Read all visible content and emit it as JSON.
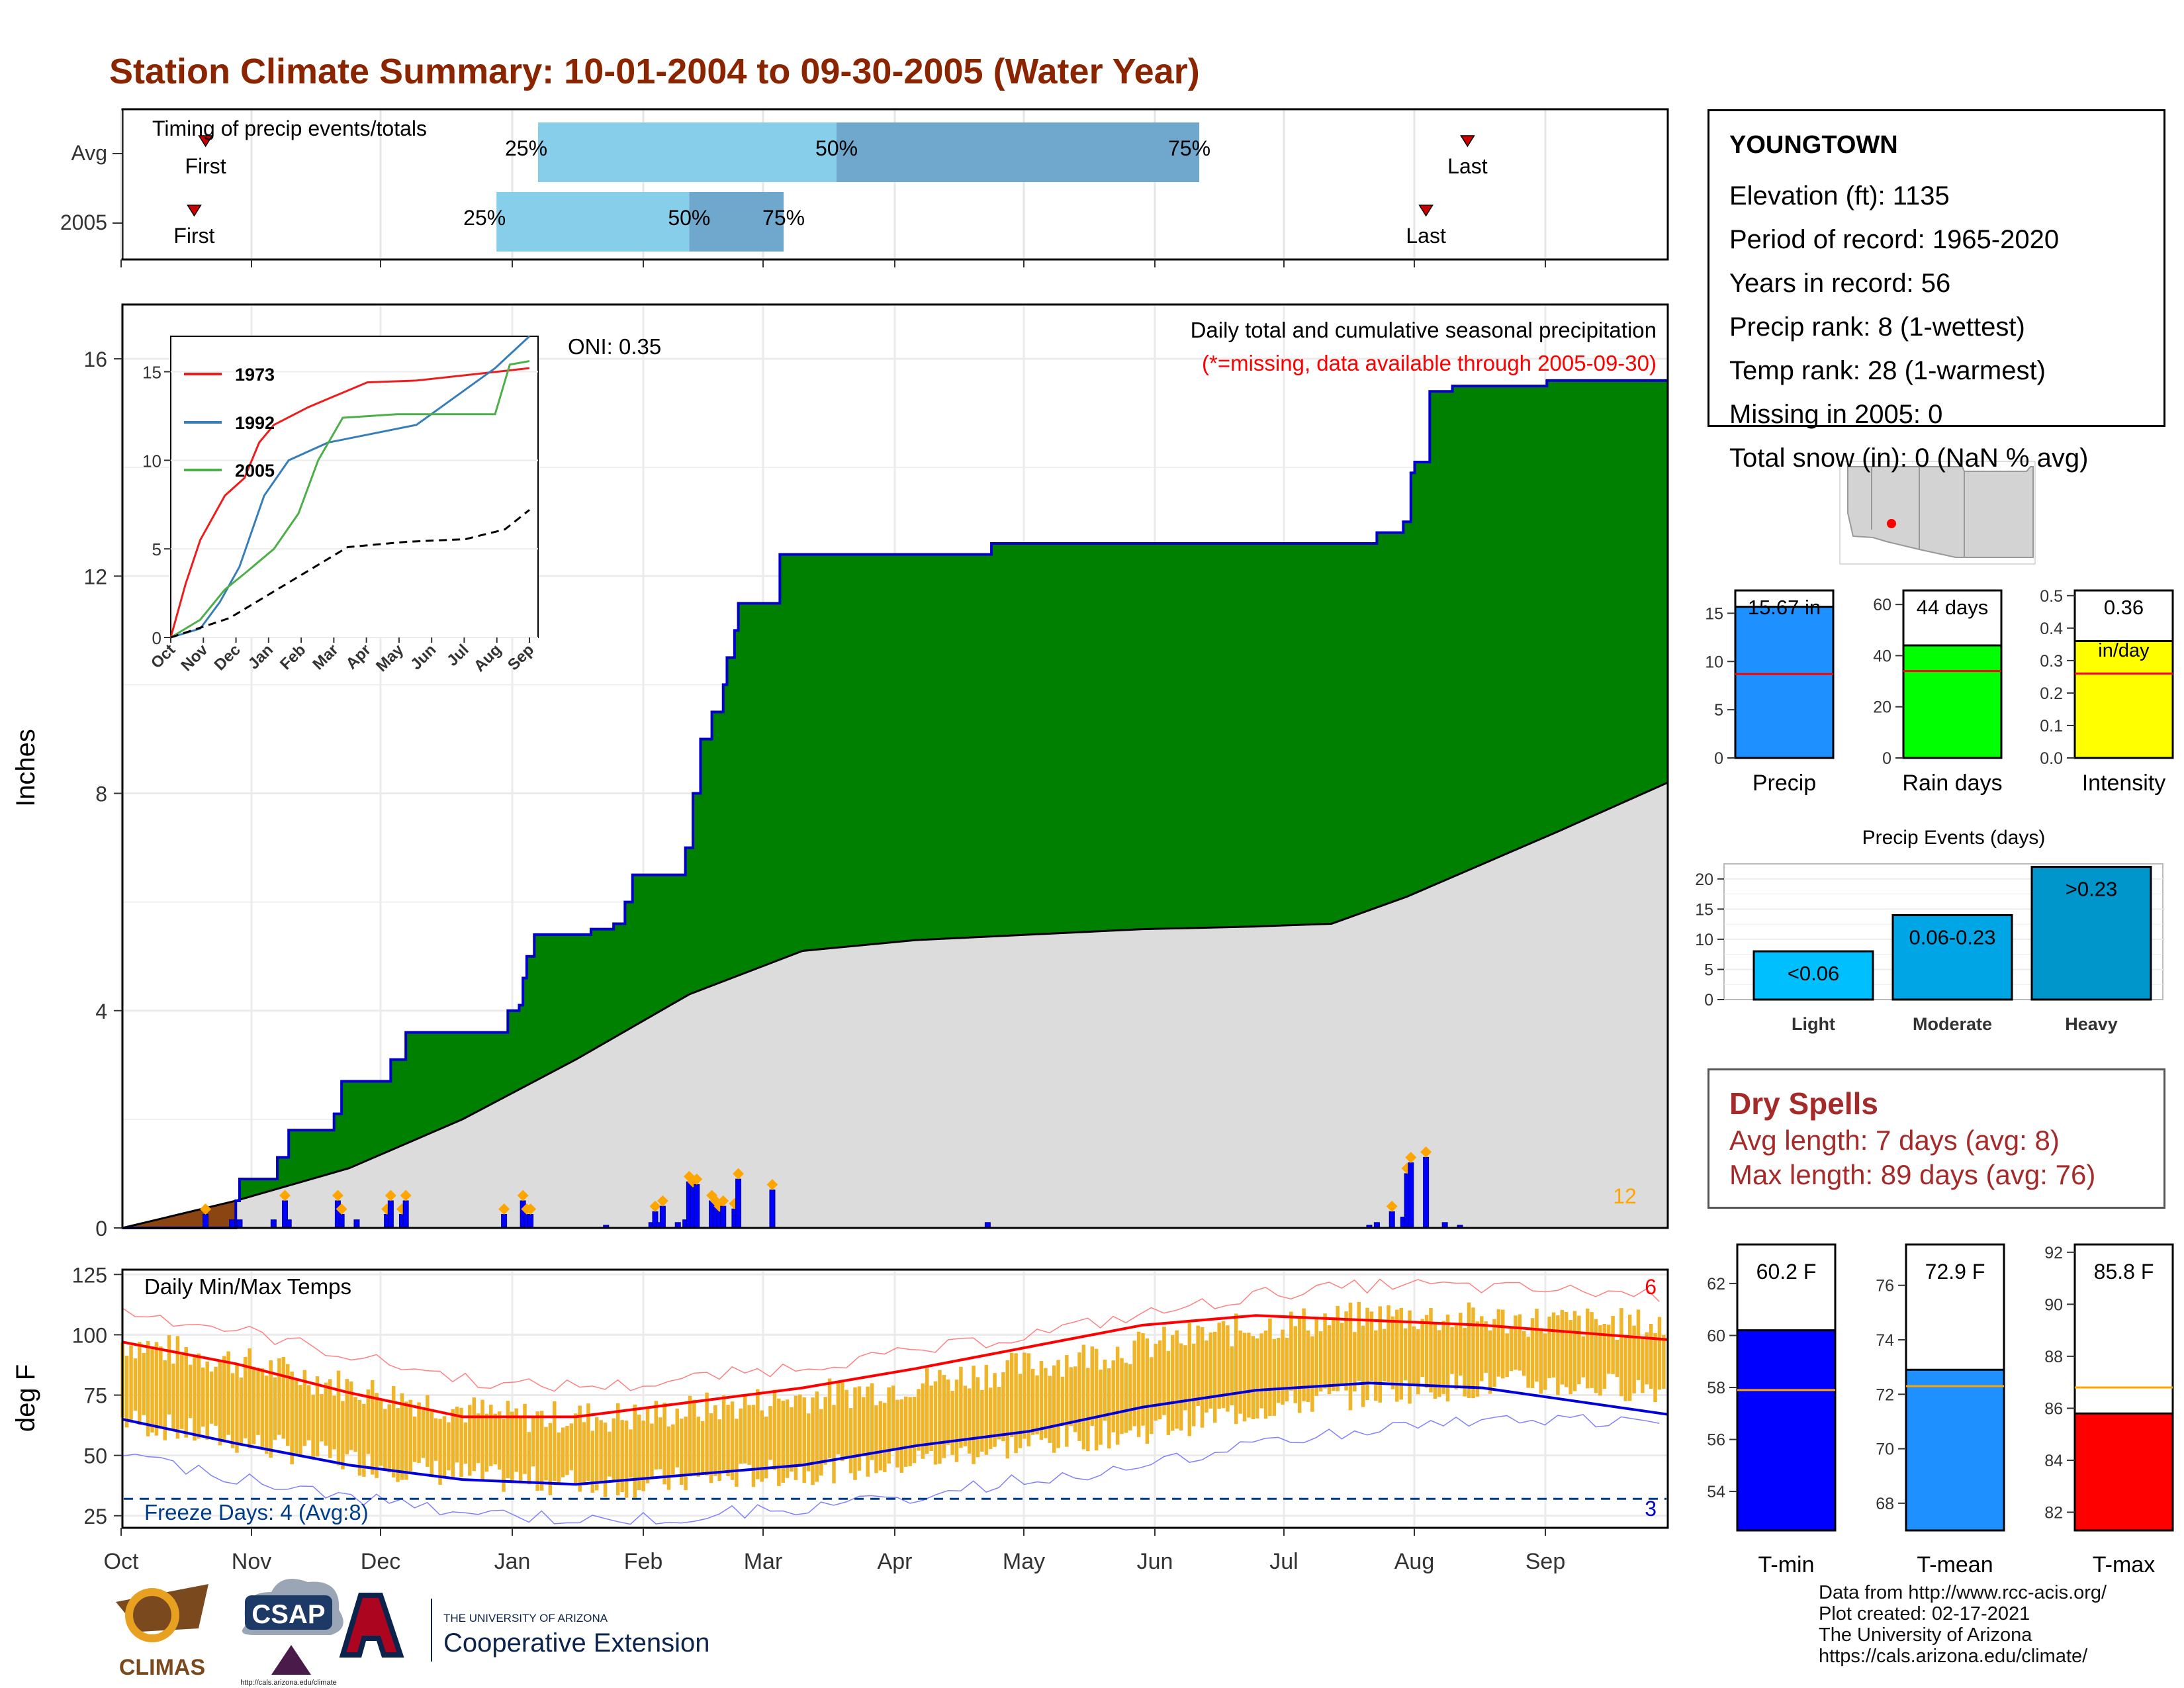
{
  "title": "Station Climate Summary: 10-01-2004 to 09-30-2005 (Water Year)",
  "colors": {
    "title": "#8b2500",
    "cum_green": "#008000",
    "cum_line": "#0000cd",
    "avg_fill": "#dcdcdc",
    "daily_bar": "#0000ff",
    "marker": "#ffa500",
    "temp_range": "#f0b428",
    "tmax_line": "#ff0000",
    "tmin_line": "#0000dd",
    "freeze_line": "#003c8c",
    "bar_light": "#87ceeb",
    "bar_dark": "#6fa8cc",
    "dry_text": "#a52a2a"
  },
  "timing": {
    "label": "Timing of precip events/totals",
    "rows": [
      "Avg",
      "2005"
    ],
    "first": "First",
    "last": "Last",
    "pct": [
      "25%",
      "50%",
      "75%"
    ]
  },
  "precip": {
    "ylabel": "Inches",
    "yticks": [
      "0",
      "4",
      "8",
      "12",
      "16"
    ],
    "title": "Daily total and cumulative seasonal precipitation",
    "missing_note": "(*=missing, data available through 2005-09-30)",
    "oni": "ONI: 0.35",
    "count_label": "12"
  },
  "inset": {
    "yticks": [
      "0",
      "5",
      "10",
      "15"
    ],
    "xticks": [
      "Oct",
      "Nov",
      "Dec",
      "Jan",
      "Feb",
      "Mar",
      "Apr",
      "May",
      "Jun",
      "Jul",
      "Aug",
      "Sep"
    ],
    "legend": [
      "1973",
      "1992",
      "2005"
    ]
  },
  "temps": {
    "ylabel": "deg F",
    "yticks": [
      "25",
      "50",
      "75",
      "100",
      "125"
    ],
    "title": "Daily Min/Max Temps",
    "freeze": "Freeze Days: 4 (Avg:8)",
    "count_hi": "6",
    "count_lo": "3"
  },
  "months": [
    "Oct",
    "Nov",
    "Dec",
    "Jan",
    "Feb",
    "Mar",
    "Apr",
    "May",
    "Jun",
    "Jul",
    "Aug",
    "Sep"
  ],
  "station": {
    "name": "YOUNGTOWN",
    "lines": [
      "Elevation (ft): 1135",
      "Period of record: 1965-2020",
      "Years in record: 56",
      "Precip rank: 8 (1-wettest)",
      "Temp rank: 28 (1-warmest)",
      "Missing in 2005: 0",
      "Total snow (in): 0 (NaN % avg)"
    ]
  },
  "mini_bars": {
    "precip": {
      "label": "Precip",
      "value_text": "15.67 in",
      "yticks": [
        "0",
        "5",
        "10",
        "15"
      ]
    },
    "raindays": {
      "label": "Rain days",
      "value_text": "44 days",
      "yticks": [
        "0",
        "20",
        "40",
        "60"
      ]
    },
    "intensity": {
      "label": "Intensity",
      "value_text": "0.36",
      "unit": "in/day",
      "yticks": [
        "0.0",
        "0.1",
        "0.2",
        "0.3",
        "0.4",
        "0.5"
      ]
    }
  },
  "events": {
    "title": "Precip Events (days)",
    "yticks": [
      "0",
      "5",
      "10",
      "15",
      "20"
    ],
    "categories": [
      "Light",
      "Moderate",
      "Heavy"
    ],
    "labels": [
      "<0.06",
      "0.06-0.23",
      ">0.23"
    ]
  },
  "dry": {
    "title": "Dry Spells",
    "lines": [
      "Avg length: 7 days (avg: 8)",
      "Max length: 89 days (avg: 76)"
    ]
  },
  "temp_bars": {
    "tmin": {
      "label": "T-min",
      "value_text": "60.2 F",
      "yticks": [
        "54",
        "56",
        "58",
        "60",
        "62"
      ]
    },
    "tmean": {
      "label": "T-mean",
      "value_text": "72.9 F",
      "yticks": [
        "68",
        "70",
        "72",
        "74",
        "76"
      ]
    },
    "tmax": {
      "label": "T-max",
      "value_text": "85.8 F",
      "yticks": [
        "82",
        "84",
        "86",
        "88",
        "90",
        "92"
      ]
    }
  },
  "footer": [
    "Data from http://www.rcc-acis.org/",
    "Plot created: 02-17-2021",
    "The University of Arizona",
    "https://cals.arizona.edu/climate/"
  ],
  "logos": {
    "climas": "CLIMAS",
    "csap": "CSAP",
    "csap_url": "http://cals.arizona.edu/climate",
    "ua_top": "THE UNIVERSITY OF ARIZONA",
    "ua_bottom": "Cooperative Extension"
  },
  "chart_data": [
    {
      "type": "bar",
      "name": "timing",
      "x_unit": "day of water year",
      "avg": {
        "first": 22,
        "q25": 110,
        "q50": 189,
        "q75": 285,
        "last": 356
      },
      "y2005": {
        "first": 19,
        "q25": 99,
        "q50": 150,
        "q75": 175,
        "last": 345
      }
    },
    {
      "type": "area",
      "name": "cumulative precipitation",
      "ylim": [
        0,
        17
      ],
      "cumulative_2005": [
        [
          0,
          0
        ],
        [
          30,
          0.5
        ],
        [
          31,
          0.9
        ],
        [
          40,
          0.9
        ],
        [
          41,
          1.3
        ],
        [
          44,
          1.8
        ],
        [
          55,
          1.8
        ],
        [
          56,
          2.1
        ],
        [
          58,
          2.7
        ],
        [
          70,
          2.7
        ],
        [
          71,
          3.1
        ],
        [
          75,
          3.6
        ],
        [
          100,
          3.6
        ],
        [
          102,
          4.0
        ],
        [
          105,
          4.1
        ],
        [
          106,
          4.6
        ],
        [
          107,
          5.0
        ],
        [
          109,
          5.4
        ],
        [
          124,
          5.5
        ],
        [
          130,
          5.6
        ],
        [
          133,
          6.0
        ],
        [
          135,
          6.5
        ],
        [
          145,
          6.5
        ],
        [
          149,
          7.0
        ],
        [
          151,
          8.0
        ],
        [
          153,
          9.0
        ],
        [
          156,
          9.5
        ],
        [
          159,
          10.0
        ],
        [
          160,
          10.5
        ],
        [
          162,
          11.0
        ],
        [
          163,
          11.5
        ],
        [
          173,
          11.5
        ],
        [
          174,
          12.4
        ],
        [
          229,
          12.4
        ],
        [
          230,
          12.6
        ],
        [
          330,
          12.6
        ],
        [
          332,
          12.8
        ],
        [
          337,
          12.8
        ],
        [
          339,
          13.0
        ],
        [
          341,
          13.9
        ],
        [
          342,
          14.1
        ],
        [
          346,
          15.4
        ],
        [
          350,
          15.4
        ],
        [
          352,
          15.5
        ],
        [
          375,
          15.5
        ],
        [
          377,
          15.6
        ],
        [
          409,
          15.6
        ]
      ],
      "cumulative_avg": [
        [
          0,
          0
        ],
        [
          30,
          0.5
        ],
        [
          60,
          1.1
        ],
        [
          90,
          2.0
        ],
        [
          120,
          3.1
        ],
        [
          150,
          4.3
        ],
        [
          180,
          5.1
        ],
        [
          210,
          5.3
        ],
        [
          240,
          5.4
        ],
        [
          270,
          5.5
        ],
        [
          300,
          5.55
        ],
        [
          320,
          5.6
        ],
        [
          340,
          6.1
        ],
        [
          360,
          6.7
        ],
        [
          380,
          7.3
        ],
        [
          409,
          8.2
        ]
      ],
      "daily": [
        [
          22,
          0.25
        ],
        [
          29,
          0.15
        ],
        [
          31,
          0.15
        ],
        [
          40,
          0.15
        ],
        [
          43,
          0.5
        ],
        [
          44,
          0.15
        ],
        [
          57,
          0.5
        ],
        [
          58,
          0.25
        ],
        [
          62,
          0.15
        ],
        [
          70,
          0.25
        ],
        [
          71,
          0.5
        ],
        [
          74,
          0.25
        ],
        [
          75,
          0.5
        ],
        [
          101,
          0.25
        ],
        [
          106,
          0.5
        ],
        [
          107,
          0.25
        ],
        [
          108,
          0.25
        ],
        [
          128,
          0.05
        ],
        [
          140,
          0.1
        ],
        [
          141,
          0.3
        ],
        [
          142,
          0.1
        ],
        [
          143,
          0.4
        ],
        [
          147,
          0.1
        ],
        [
          149,
          0.15
        ],
        [
          150,
          0.85
        ],
        [
          151,
          0.75
        ],
        [
          152,
          0.8
        ],
        [
          156,
          0.5
        ],
        [
          157,
          0.4
        ],
        [
          158,
          0.3
        ],
        [
          159,
          0.4
        ],
        [
          162,
          0.35
        ],
        [
          163,
          0.9
        ],
        [
          172,
          0.7
        ],
        [
          229,
          0.1
        ],
        [
          330,
          0.05
        ],
        [
          332,
          0.1
        ],
        [
          336,
          0.3
        ],
        [
          339,
          0.2
        ],
        [
          340,
          1.0
        ],
        [
          341,
          1.2
        ],
        [
          345,
          1.3
        ],
        [
          350,
          0.1
        ],
        [
          354,
          0.05
        ]
      ]
    },
    {
      "type": "line",
      "name": "inset cumulative",
      "ylim": [
        0,
        17
      ],
      "series": [
        {
          "name": "1973",
          "values": [
            [
              0,
              0
            ],
            [
              15,
              3
            ],
            [
              30,
              5.5
            ],
            [
              55,
              8
            ],
            [
              75,
              9
            ],
            [
              90,
              11
            ],
            [
              105,
              12
            ],
            [
              140,
              13
            ],
            [
              200,
              14.4
            ],
            [
              250,
              14.5
            ],
            [
              365,
              15.2
            ]
          ]
        },
        {
          "name": "1992",
          "values": [
            [
              0,
              0
            ],
            [
              30,
              0.5
            ],
            [
              50,
              2
            ],
            [
              70,
              4
            ],
            [
              95,
              8
            ],
            [
              120,
              10
            ],
            [
              160,
              11
            ],
            [
              250,
              12
            ],
            [
              300,
              14
            ],
            [
              330,
              15.2
            ],
            [
              365,
              17
            ]
          ]
        },
        {
          "name": "2005",
          "values": [
            [
              0,
              0
            ],
            [
              30,
              1
            ],
            [
              55,
              2.7
            ],
            [
              75,
              3.6
            ],
            [
              105,
              5
            ],
            [
              130,
              7
            ],
            [
              150,
              10
            ],
            [
              175,
              12.4
            ],
            [
              230,
              12.6
            ],
            [
              330,
              12.6
            ],
            [
              345,
              15.4
            ],
            [
              365,
              15.6
            ]
          ]
        },
        {
          "name": "Average",
          "values": [
            [
              0,
              0
            ],
            [
              60,
              1.1
            ],
            [
              120,
              3.1
            ],
            [
              180,
              5.1
            ],
            [
              240,
              5.4
            ],
            [
              300,
              5.55
            ],
            [
              340,
              6.1
            ],
            [
              365,
              7.2
            ]
          ]
        }
      ]
    },
    {
      "type": "line",
      "name": "daily temps",
      "ylim": [
        20,
        125
      ],
      "freeze_line": 32,
      "tmax_normal": [
        [
          0,
          97
        ],
        [
          30,
          88
        ],
        [
          60,
          76
        ],
        [
          90,
          66
        ],
        [
          120,
          66
        ],
        [
          150,
          72
        ],
        [
          180,
          78
        ],
        [
          210,
          86
        ],
        [
          240,
          95
        ],
        [
          270,
          104
        ],
        [
          300,
          108
        ],
        [
          330,
          106
        ],
        [
          360,
          104
        ],
        [
          409,
          98
        ]
      ],
      "tmin_normal": [
        [
          0,
          65
        ],
        [
          30,
          55
        ],
        [
          60,
          46
        ],
        [
          90,
          40
        ],
        [
          120,
          38
        ],
        [
          150,
          42
        ],
        [
          180,
          46
        ],
        [
          210,
          54
        ],
        [
          240,
          60
        ],
        [
          270,
          70
        ],
        [
          300,
          77
        ],
        [
          330,
          80
        ],
        [
          360,
          78
        ],
        [
          409,
          67
        ]
      ]
    },
    {
      "type": "bar",
      "name": "season totals",
      "precip": {
        "value": 15.67,
        "avg": 8.7,
        "ylim": [
          0,
          17.5
        ]
      },
      "rain_days": {
        "value": 44,
        "avg": 34,
        "ylim": [
          0,
          66
        ]
      },
      "intensity": {
        "value": 0.36,
        "avg": 0.26,
        "ylim": [
          0,
          0.52
        ]
      }
    },
    {
      "type": "bar",
      "name": "precip events",
      "categories": [
        "Light",
        "Moderate",
        "Heavy"
      ],
      "values": [
        8,
        14,
        22
      ],
      "ylim": [
        0,
        22.5
      ]
    },
    {
      "type": "bar",
      "name": "temp summary",
      "tmin": {
        "value": 60.2,
        "avg": 57.9,
        "ylim": [
          52.5,
          63.5
        ]
      },
      "tmean": {
        "value": 72.9,
        "avg": 72.3,
        "ylim": [
          67.0,
          77.5
        ]
      },
      "tmax": {
        "value": 85.8,
        "avg": 86.8,
        "ylim": [
          81.3,
          92.3
        ]
      }
    }
  ]
}
